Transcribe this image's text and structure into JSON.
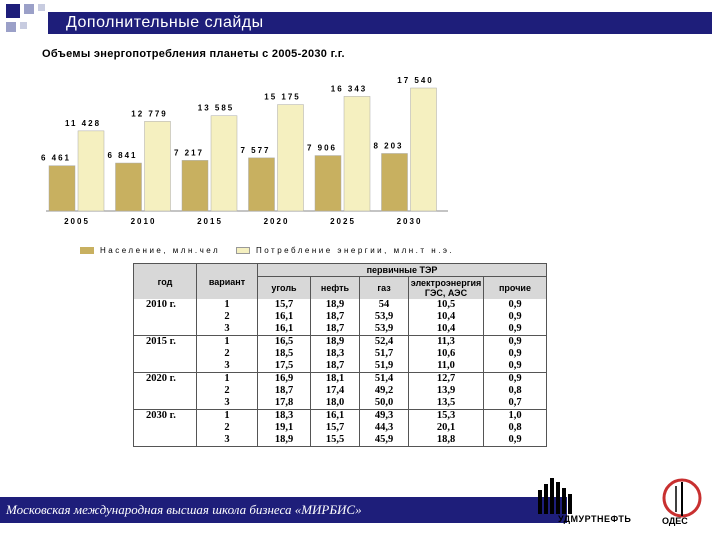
{
  "header": {
    "title": "Дополнительные слайды"
  },
  "subtitle": "Объемы энергопотребления планеты с 2005-2030 г.г.",
  "chart_data": {
    "type": "bar",
    "categories": [
      "2005",
      "2010",
      "2015",
      "2020",
      "2025",
      "2030"
    ],
    "series": [
      {
        "name": "Население, млн.чел",
        "values": [
          6461,
          6841,
          7217,
          7577,
          7906,
          8203
        ],
        "labels": [
          "6 461",
          "6 841",
          "7 217",
          "7 577",
          "7 906",
          "8 203"
        ],
        "color": "#c8b060"
      },
      {
        "name": "Потребление энергии, млн.т н.э.",
        "values": [
          11428,
          12779,
          13585,
          15175,
          16343,
          17540
        ],
        "labels": [
          "11 428",
          "12 779",
          "13 585",
          "15 175",
          "16 343",
          "17 540"
        ],
        "color": "#f5f0c0"
      }
    ],
    "ylim": [
      0,
      18000
    ],
    "legend_position": "bottom"
  },
  "table": {
    "header_top": "первичные ТЭР",
    "headers": [
      "год",
      "вариант",
      "уголь",
      "нефть",
      "газ",
      "электроэнергия ГЭС, АЭС",
      "прочие"
    ],
    "rows": [
      [
        "2010 г.",
        "1",
        "15,7",
        "18,9",
        "54",
        "10,5",
        "0,9"
      ],
      [
        "",
        "2",
        "16,1",
        "18,7",
        "53,9",
        "10,4",
        "0,9"
      ],
      [
        "",
        "3",
        "16,1",
        "18,7",
        "53,9",
        "10,4",
        "0,9"
      ],
      [
        "2015 г.",
        "1",
        "16,5",
        "18,9",
        "52,4",
        "11,3",
        "0,9"
      ],
      [
        "",
        "2",
        "18,5",
        "18,3",
        "51,7",
        "10,6",
        "0,9"
      ],
      [
        "",
        "3",
        "17,5",
        "18,7",
        "51,9",
        "11,0",
        "0,9"
      ],
      [
        "2020 г.",
        "1",
        "16,9",
        "18,1",
        "51,4",
        "12,7",
        "0,9"
      ],
      [
        "",
        "2",
        "18,7",
        "17,4",
        "49,2",
        "13,9",
        "0,8"
      ],
      [
        "",
        "3",
        "17,8",
        "18,0",
        "50,0",
        "13,5",
        "0,7"
      ],
      [
        "2030 г.",
        "1",
        "18,3",
        "16,1",
        "49,3",
        "15,3",
        "1,0"
      ],
      [
        "",
        "2",
        "19,1",
        "15,7",
        "44,3",
        "20,1",
        "0,8"
      ],
      [
        "",
        "3",
        "18,9",
        "15,5",
        "45,9",
        "18,8",
        "0,9"
      ]
    ]
  },
  "footer": {
    "text": "Московская международная высшая школа бизнеса «МИРБИС»"
  },
  "logos": {
    "udmurt": "УДМУРТНЕФТЬ",
    "odes": "ОДЕС"
  },
  "icons": {
    "corner": "squares-logo-icon",
    "rpl": "bars-logo-icon",
    "odes": "odes-logo-icon"
  },
  "colors": {
    "accent": "#1e1e7a",
    "bar_population": "#c8b060",
    "bar_energy": "#f5f0c0",
    "table_header": "#d8d8d8"
  }
}
